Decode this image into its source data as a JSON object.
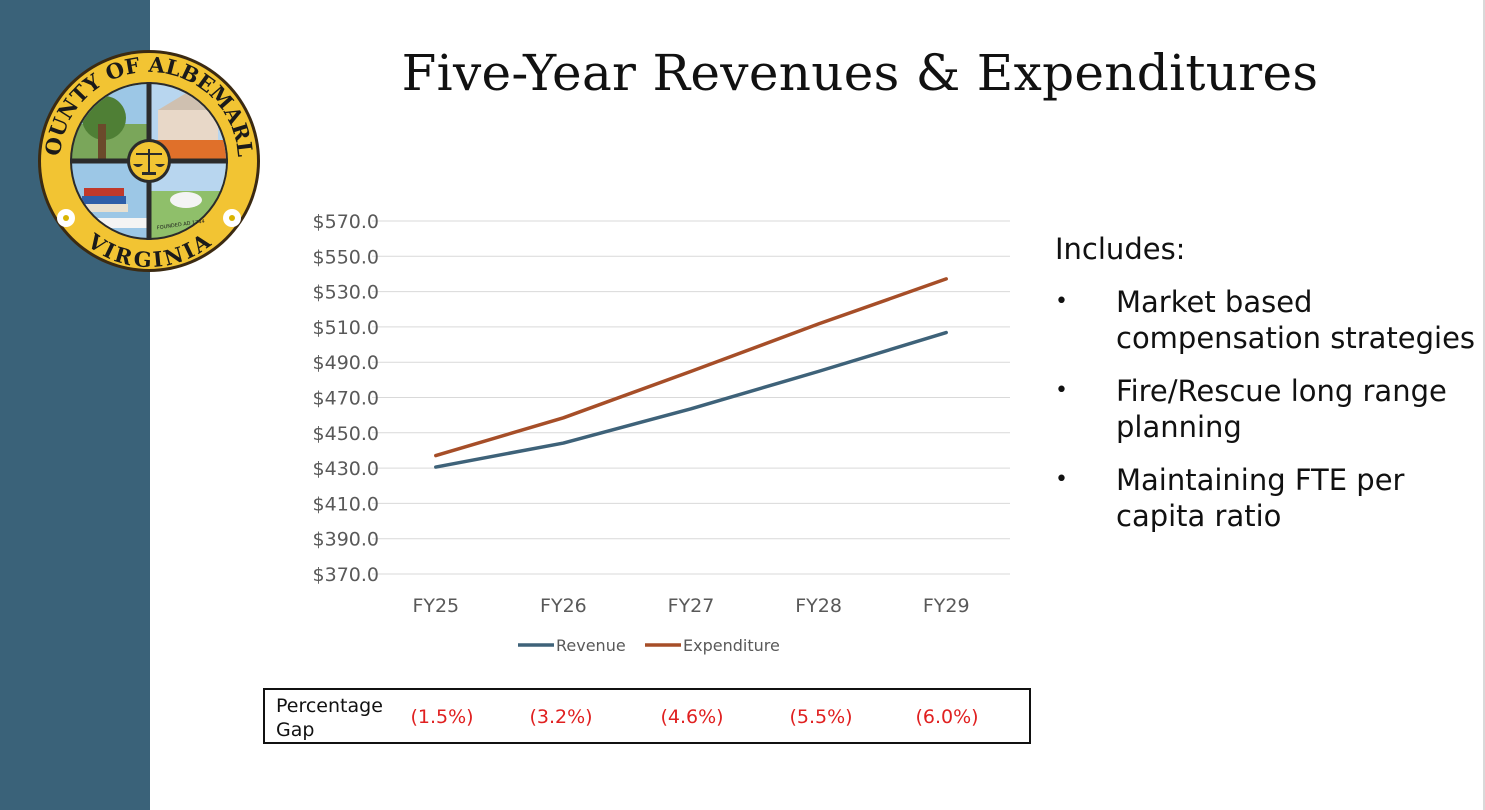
{
  "slide": {
    "title": "Five-Year Revenues & Expenditures",
    "sidebar_color": "#3a6279"
  },
  "seal": {
    "top_text": "COUNTY OF ALBEMARLE",
    "bottom_text": "VIRGINIA",
    "band_text": "FOUNDED AD 1744",
    "ring_color": "#f2c433"
  },
  "chart_data": {
    "type": "line",
    "categories": [
      "FY25",
      "FY26",
      "FY27",
      "FY28",
      "FY29"
    ],
    "series": [
      {
        "name": "Revenue",
        "values": [
          430.6,
          444.2,
          463.6,
          484.8,
          506.8
        ],
        "color": "#3e6279"
      },
      {
        "name": "Expenditure",
        "values": [
          437.1,
          458.5,
          484.8,
          511.7,
          537.2
        ],
        "color": "#a64e28"
      }
    ],
    "yticks": [
      "$570.0",
      "$550.0",
      "$530.0",
      "$510.0",
      "$490.0",
      "$470.0",
      "$450.0",
      "$430.0",
      "$410.0",
      "$390.0",
      "$370.0"
    ],
    "ylim": [
      370,
      570
    ],
    "grid": true,
    "legend_position": "bottom"
  },
  "includes": {
    "heading": "Includes:",
    "bullet": "•",
    "items": [
      "Market based compensation strategies",
      "Fire/Rescue long range planning",
      "Maintaining FTE per capita ratio"
    ]
  },
  "gap_table": {
    "label": "Percentage Gap",
    "values": [
      "(1.5%)",
      "(3.2%)",
      "(4.6%)",
      "(5.5%)",
      "(6.0%)"
    ],
    "value_color": "#e02020"
  }
}
